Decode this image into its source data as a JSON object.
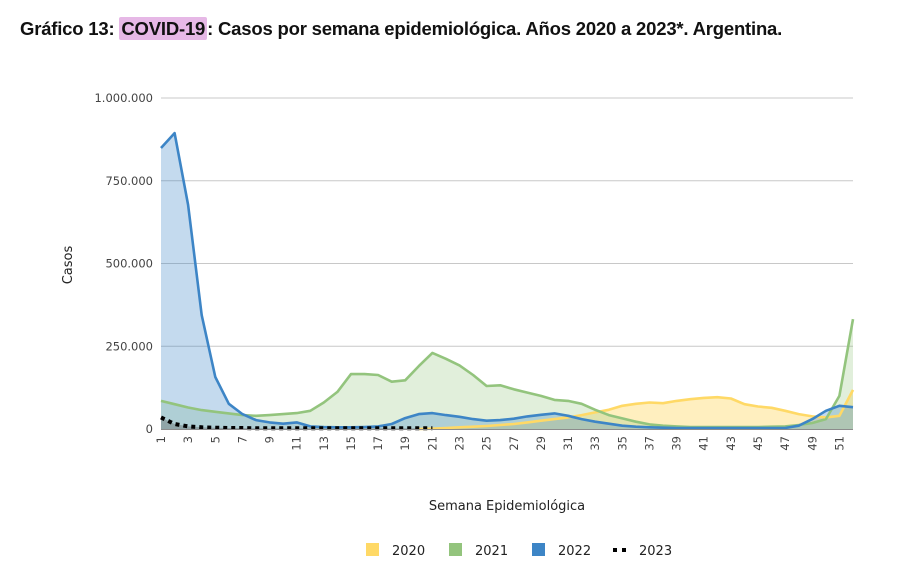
{
  "title": {
    "prefix": "Gráfico 13: ",
    "highlight": "COVID-19",
    "suffix": ": Casos por semana epidemiológica. Años 2020 a 2023*. Argentina."
  },
  "chart_data": {
    "type": "area",
    "title": "Gráfico 13: COVID-19: Casos por semana epidemiológica. Años 2020 a 2023*. Argentina.",
    "xlabel": "Semana Epidemiológica",
    "ylabel": "Casos",
    "ylim": [
      0,
      1000000
    ],
    "yticks": [
      0,
      250000,
      500000,
      750000,
      1000000
    ],
    "ytick_labels": [
      "0",
      "250.000",
      "500.000",
      "750.000",
      "1.000.000"
    ],
    "xlim": [
      1,
      52
    ],
    "xtick_labels": [
      "1",
      "3",
      "5",
      "7",
      "9",
      "11",
      "13",
      "15",
      "17",
      "19",
      "21",
      "23",
      "25",
      "27",
      "29",
      "31",
      "33",
      "35",
      "37",
      "39",
      "41",
      "43",
      "45",
      "47",
      "49",
      "51"
    ],
    "grid": true,
    "legend_position": "bottom",
    "x": [
      1,
      2,
      3,
      4,
      5,
      6,
      7,
      8,
      9,
      10,
      11,
      12,
      13,
      14,
      15,
      16,
      17,
      18,
      19,
      20,
      21,
      22,
      23,
      24,
      25,
      26,
      27,
      28,
      29,
      30,
      31,
      32,
      33,
      34,
      35,
      36,
      37,
      38,
      39,
      40,
      41,
      42,
      43,
      44,
      45,
      46,
      47,
      48,
      49,
      50,
      51,
      52
    ],
    "series": [
      {
        "name": "2020",
        "color": "#ffd966",
        "style": "area",
        "values": [
          null,
          null,
          null,
          null,
          null,
          null,
          null,
          null,
          null,
          null,
          null,
          null,
          null,
          null,
          null,
          null,
          null,
          null,
          null,
          0,
          1000,
          3000,
          5000,
          7000,
          9000,
          12000,
          15000,
          20000,
          25000,
          30000,
          35000,
          42000,
          50000,
          58000,
          70000,
          76000,
          80000,
          78000,
          85000,
          90000,
          94000,
          96000,
          92000,
          75000,
          68000,
          64000,
          55000,
          45000,
          38000,
          35000,
          40000,
          118000
        ]
      },
      {
        "name": "2021",
        "color": "#93c47d",
        "style": "area",
        "values": [
          85000,
          75000,
          65000,
          57000,
          52000,
          47000,
          42000,
          40000,
          42000,
          45000,
          48000,
          55000,
          80000,
          112000,
          166000,
          166000,
          163000,
          143000,
          147000,
          190000,
          230000,
          212000,
          192000,
          163000,
          130000,
          132000,
          120000,
          110000,
          100000,
          88000,
          85000,
          76000,
          58000,
          42000,
          32000,
          22000,
          14000,
          10000,
          8000,
          6000,
          6000,
          6000,
          6000,
          6000,
          6000,
          7000,
          8000,
          12000,
          18000,
          30000,
          100000,
          332000
        ]
      },
      {
        "name": "2022",
        "color": "#3d85c6",
        "style": "area",
        "values": [
          849000,
          894000,
          677000,
          344000,
          157000,
          76000,
          45000,
          27000,
          20000,
          16000,
          20000,
          8000,
          6000,
          5000,
          5000,
          6000,
          8000,
          15000,
          33000,
          45000,
          48000,
          42000,
          37000,
          30000,
          25000,
          27000,
          31000,
          38000,
          43000,
          47000,
          40000,
          30000,
          22000,
          16000,
          10000,
          7000,
          5000,
          4000,
          3000,
          3000,
          3000,
          3000,
          3000,
          3000,
          3000,
          3000,
          3000,
          10000,
          30000,
          55000,
          70000,
          66000
        ]
      },
      {
        "name": "2023",
        "color": "#000000",
        "style": "dotted",
        "values": [
          35000,
          15000,
          8000,
          5000,
          4000,
          3000,
          3000,
          2000,
          2000,
          2000,
          2000,
          2000,
          2000,
          2000,
          2000,
          2000,
          2000,
          2000,
          2000,
          2000,
          2000,
          null,
          null,
          null,
          null,
          null,
          null,
          null,
          null,
          null,
          null,
          null,
          null,
          null,
          null,
          null,
          null,
          null,
          null,
          null,
          null,
          null,
          null,
          null,
          null,
          null,
          null,
          null,
          null,
          null,
          null,
          null
        ]
      }
    ]
  }
}
